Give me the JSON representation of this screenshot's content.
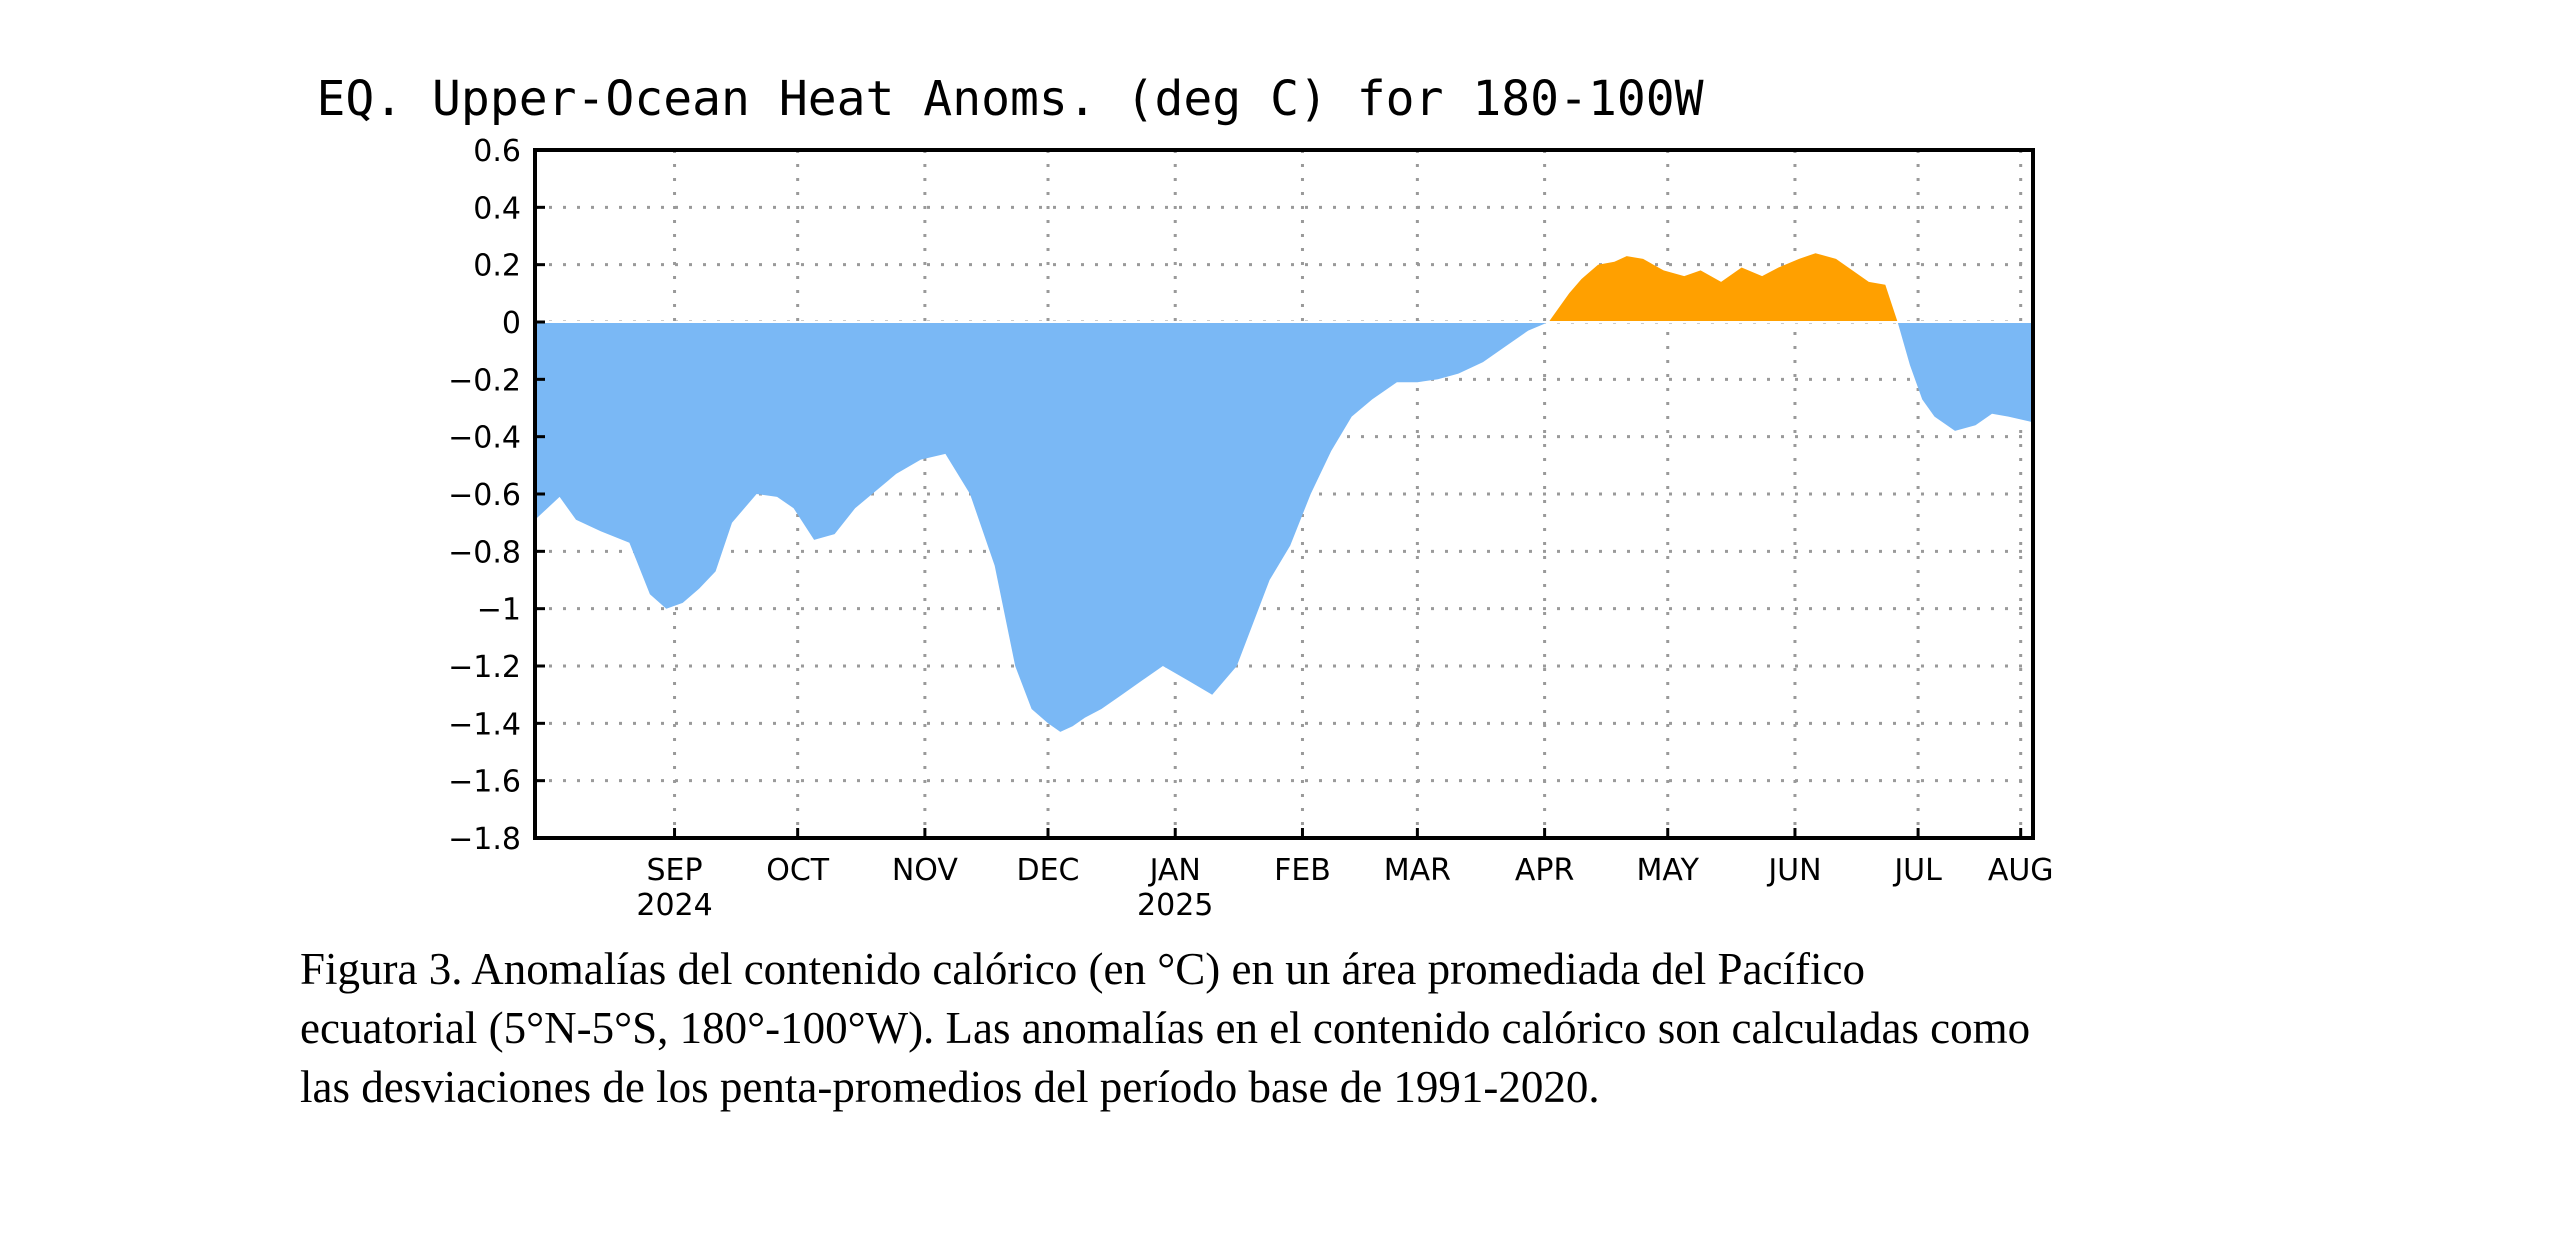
{
  "chart_data": {
    "type": "area",
    "title": "EQ. Upper-Ocean Heat Anoms. (deg C) for 180-100W",
    "ylim": [
      -1.8,
      0.6
    ],
    "yticks": [
      "0.6",
      "0.4",
      "0.2",
      "0",
      "-0.2",
      "-0.4",
      "-0.6",
      "-0.8",
      "-1",
      "-1.2",
      "-1.4",
      "-1.6",
      "-1.8"
    ],
    "x_range": [
      "2024-08-12",
      "2025-08-12"
    ],
    "months": [
      {
        "label": "SEP",
        "date": "2024-09-15"
      },
      {
        "label": "OCT",
        "date": "2024-10-15"
      },
      {
        "label": "NOV",
        "date": "2024-11-15"
      },
      {
        "label": "DEC",
        "date": "2024-12-15"
      },
      {
        "label": "JAN",
        "date": "2025-01-15"
      },
      {
        "label": "FEB",
        "date": "2025-02-15"
      },
      {
        "label": "MAR",
        "date": "2025-03-15"
      },
      {
        "label": "APR",
        "date": "2025-04-15"
      },
      {
        "label": "MAY",
        "date": "2025-05-15"
      },
      {
        "label": "JUN",
        "date": "2025-06-15"
      },
      {
        "label": "JUL",
        "date": "2025-07-15"
      },
      {
        "label": "AUG",
        "date": "2025-08-09"
      }
    ],
    "year_labels": [
      {
        "label": "2024",
        "date": "2024-09-15"
      },
      {
        "label": "2025",
        "date": "2025-01-15"
      }
    ],
    "positive_color": "#ffa000",
    "negative_color": "#7ab8f5",
    "grid": true,
    "series": [
      {
        "x": [
          "2024-08-12",
          "2024-08-18",
          "2024-08-22",
          "2024-08-28",
          "2024-09-04",
          "2024-09-09",
          "2024-09-13",
          "2024-09-17",
          "2024-09-21",
          "2024-09-25",
          "2024-09-29",
          "2024-10-05",
          "2024-10-10",
          "2024-10-14",
          "2024-10-19",
          "2024-10-24",
          "2024-10-29",
          "2024-11-03",
          "2024-11-08",
          "2024-11-14",
          "2024-11-20",
          "2024-11-26",
          "2024-12-02",
          "2024-12-07",
          "2024-12-11",
          "2024-12-15",
          "2024-12-18",
          "2024-12-21",
          "2024-12-24",
          "2024-12-28",
          "2025-01-02",
          "2025-01-07",
          "2025-01-12",
          "2025-01-18",
          "2025-01-24",
          "2025-01-30",
          "2025-02-03",
          "2025-02-07",
          "2025-02-12",
          "2025-02-17",
          "2025-02-22",
          "2025-02-27",
          "2025-03-04",
          "2025-03-10",
          "2025-03-15",
          "2025-03-20",
          "2025-03-25",
          "2025-03-31",
          "2025-04-06",
          "2025-04-11",
          "2025-04-16",
          "2025-04-21",
          "2025-04-24",
          "2025-04-28",
          "2025-05-02",
          "2025-05-05",
          "2025-05-09",
          "2025-05-14",
          "2025-05-19",
          "2025-05-23",
          "2025-05-28",
          "2025-06-02",
          "2025-06-07",
          "2025-06-11",
          "2025-06-16",
          "2025-06-20",
          "2025-06-25",
          "2025-06-30",
          "2025-07-03",
          "2025-07-07",
          "2025-07-10",
          "2025-07-13",
          "2025-07-16",
          "2025-07-19",
          "2025-07-24",
          "2025-07-29",
          "2025-08-02",
          "2025-08-06",
          "2025-08-12"
        ],
        "values": [
          -0.69,
          -0.61,
          -0.69,
          -0.73,
          -0.77,
          -0.95,
          -1.0,
          -0.98,
          -0.93,
          -0.87,
          -0.7,
          -0.6,
          -0.61,
          -0.65,
          -0.76,
          -0.74,
          -0.65,
          -0.59,
          -0.53,
          -0.48,
          -0.46,
          -0.6,
          -0.85,
          -1.2,
          -1.35,
          -1.4,
          -1.43,
          -1.41,
          -1.38,
          -1.35,
          -1.3,
          -1.25,
          -1.2,
          -1.25,
          -1.3,
          -1.2,
          -1.05,
          -0.9,
          -0.78,
          -0.6,
          -0.45,
          -0.33,
          -0.27,
          -0.21,
          -0.21,
          -0.2,
          -0.18,
          -0.14,
          -0.08,
          -0.03,
          0.0,
          0.1,
          0.15,
          0.2,
          0.21,
          0.23,
          0.22,
          0.18,
          0.16,
          0.18,
          0.14,
          0.19,
          0.16,
          0.19,
          0.22,
          0.24,
          0.22,
          0.17,
          0.14,
          0.13,
          0.0,
          -0.15,
          -0.27,
          -0.33,
          -0.38,
          -0.36,
          -0.32,
          -0.33,
          -0.35
        ]
      }
    ]
  },
  "caption": {
    "line1": "Figura 3. Anomalías del contenido calórico (en °C) en un área promediada del Pacífico",
    "line2": "ecuatorial (5°N-5°S, 180°-100°W). Las anomalías en el contenido calórico son calculadas como",
    "line3": "las desviaciones de los penta-promedios del período base de 1991-2020."
  }
}
